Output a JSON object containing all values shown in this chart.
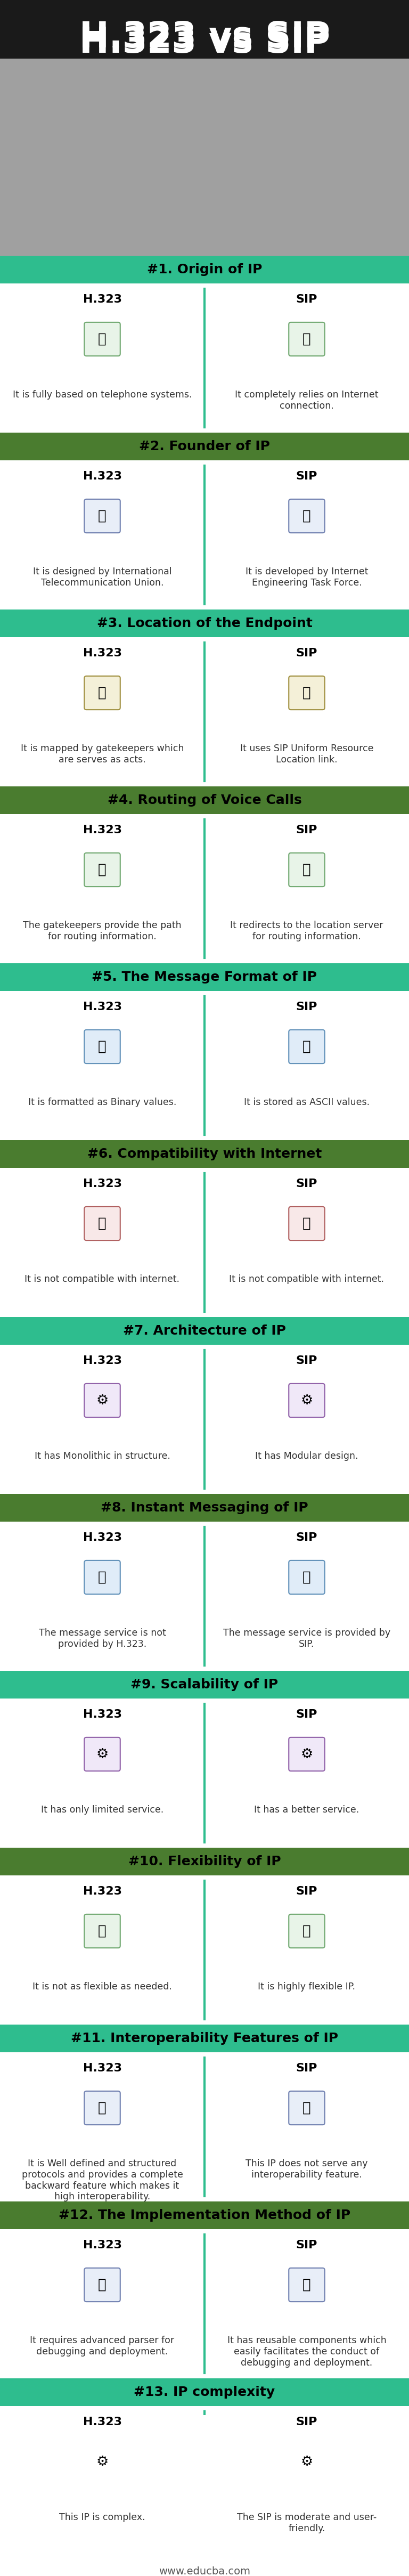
{
  "title": "H.323 vs SIP",
  "sections": [
    {
      "number": "#1.",
      "title": "Origin of IP",
      "header_color": "#2ebd8e",
      "bg_color": "#ffffff",
      "h323_text": "It is fully based on telephone systems.",
      "sip_text": "It completely relies on Internet\nconnection."
    },
    {
      "number": "#2.",
      "title": "Founder of IP",
      "header_color": "#4a7c2f",
      "bg_color": "#ffffff",
      "h323_text": "It is designed by International\nTelecommunication Union.",
      "sip_text": "It is developed by Internet\nEngineering Task Force."
    },
    {
      "number": "#3.",
      "title": "Location of the Endpoint",
      "header_color": "#2ebd8e",
      "bg_color": "#ffffff",
      "h323_text": "It is mapped by gatekeepers which\nare serves as acts.",
      "sip_text": "It uses SIP Uniform Resource\nLocation link."
    },
    {
      "number": "#4.",
      "title": "Routing of Voice Calls",
      "header_color": "#4a7c2f",
      "bg_color": "#ffffff",
      "h323_text": "The gatekeepers provide the path\nfor routing information.",
      "sip_text": "It redirects to the location server\nfor routing information."
    },
    {
      "number": "#5.",
      "title": "The Message Format of IP",
      "header_color": "#2ebd8e",
      "bg_color": "#ffffff",
      "h323_text": "It is formatted as Binary values.",
      "sip_text": "It is stored as ASCII values."
    },
    {
      "number": "#6.",
      "title": "Compatibility with Internet",
      "header_color": "#4a7c2f",
      "bg_color": "#ffffff",
      "h323_text": "It is not compatible with internet.",
      "sip_text": "It is not compatible with internet."
    },
    {
      "number": "#7.",
      "title": "Architecture of IP",
      "header_color": "#2ebd8e",
      "bg_color": "#ffffff",
      "h323_text": "It has Monolithic in structure.",
      "sip_text": "It has Modular design."
    },
    {
      "number": "#8.",
      "title": "Instant Messaging of IP",
      "header_color": "#4a7c2f",
      "bg_color": "#ffffff",
      "h323_text": "The message service is not\nprovided by H.323.",
      "sip_text": "The message service is provided by\nSIP."
    },
    {
      "number": "#9.",
      "title": "Scalability of IP",
      "header_color": "#2ebd8e",
      "bg_color": "#ffffff",
      "h323_text": "It has only limited service.",
      "sip_text": "It has a better service."
    },
    {
      "number": "#10.",
      "title": "Flexibility of IP",
      "header_color": "#4a7c2f",
      "bg_color": "#ffffff",
      "h323_text": "It is not as flexible as needed.",
      "sip_text": "It is highly flexible IP."
    },
    {
      "number": "#11.",
      "title": "Interoperability Features of IP",
      "header_color": "#2ebd8e",
      "bg_color": "#ffffff",
      "h323_text": "It is Well defined and structured\nprotocols and provides a complete\nbackward feature which makes it\nhigh interoperability.",
      "sip_text": "This IP does not serve any\ninteroperability feature."
    },
    {
      "number": "#12.",
      "title": "The Implementation Method of IP",
      "header_color": "#4a7c2f",
      "bg_color": "#ffffff",
      "h323_text": "It requires advanced parser for\ndebugging and deployment.",
      "sip_text": "It has reusable components which\neasily facilitates the conduct of\ndebugging and deployment."
    },
    {
      "number": "#13.",
      "title": "IP complexity",
      "header_color": "#2ebd8e",
      "bg_color": "#ffffff",
      "h323_text": "This IP is complex.",
      "sip_text": "The SIP is moderate and user-\nfriendly."
    }
  ],
  "footer": "www.educba.com",
  "green_color": "#2ebd8e",
  "dark_green_color": "#4a7c2f",
  "divider_color": "#2ebd8e"
}
